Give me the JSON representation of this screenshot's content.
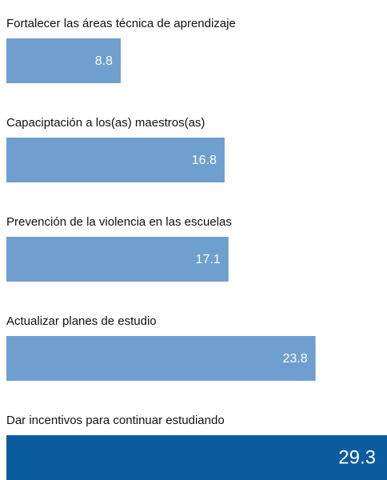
{
  "chart_data": {
    "type": "hbar",
    "categories": [
      "Fortalecer las áreas técnica de aprendizaje",
      "Capaciptación a los(as) maestros(as)",
      "Prevención de la violencia en las escuelas",
      "Actualizar planes de estudio",
      "Dar incentivos para continuar estudiando"
    ],
    "values": [
      8.8,
      16.8,
      17.1,
      23.8,
      29.3
    ],
    "colors": [
      "#6f9fcf",
      "#6f9fcf",
      "#6f9fcf",
      "#6f9fcf",
      "#0b5c9e"
    ]
  }
}
